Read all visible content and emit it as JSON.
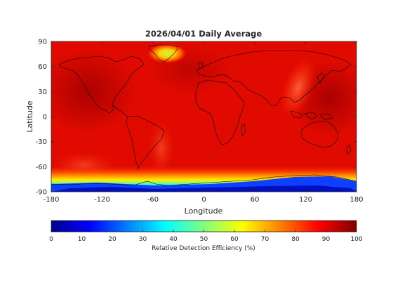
{
  "map": {
    "title": "2026/04/01 Daily Average",
    "xlabel": "Longitude",
    "ylabel": "Latitude",
    "x_ticks": [
      "-180",
      "-120",
      "-60",
      "0",
      "60",
      "120",
      "180"
    ],
    "y_ticks": [
      "90",
      "60",
      "30",
      "0",
      "-30",
      "-60",
      "-90"
    ],
    "lon_range": [
      -180,
      180
    ],
    "lat_range": [
      -90,
      90
    ]
  },
  "colorbar": {
    "label": "Relative Detection Efficiency (%)",
    "ticks": [
      "0",
      "10",
      "20",
      "30",
      "40",
      "50",
      "60",
      "70",
      "80",
      "90",
      "100"
    ],
    "range": [
      0,
      100
    ],
    "colormap": "jet"
  },
  "colors": {
    "background": "#ffffff",
    "coastline": "#000000",
    "axis": "#262626"
  }
}
